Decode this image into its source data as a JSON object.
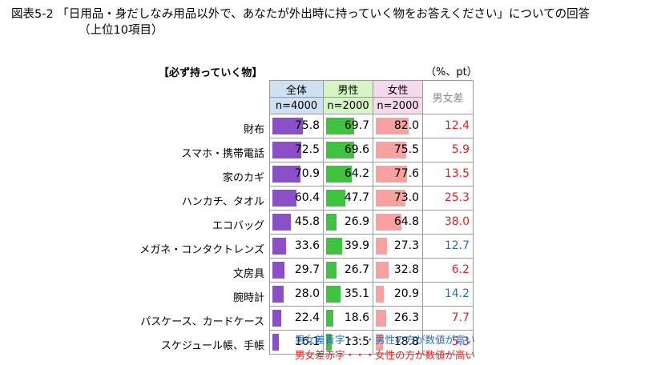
{
  "title": {
    "line1": "図表5-2 「日用品・身だしなみ用品以外で、あなたが外出時に持っていく物をお答えください」についての回答",
    "line2": "（上位10項目）"
  },
  "section_label": "【必ず持っていく物】",
  "unit_label": "（%、pt）",
  "headers": {
    "all": {
      "name": "全体",
      "n": "n=4000"
    },
    "male": {
      "name": "男性",
      "n": "n=2000"
    },
    "female": {
      "name": "女性",
      "n": "n=2000"
    },
    "diff": "男女差"
  },
  "colors": {
    "all_bar": "#8b4fc8",
    "male_bar": "#3fc23f",
    "female_bar": "#f7a1a1",
    "diff_red": "#e02020",
    "diff_blue": "#1f6fc0"
  },
  "chart_data": {
    "type": "table",
    "categories": [
      "財布",
      "スマホ・携帯電話",
      "家のカギ",
      "ハンカチ、タオル",
      "エコバッグ",
      "メガネ・コンタクトレンズ",
      "文房具",
      "腕時計",
      "パスケース、カードケース",
      "スケジュール帳、手帳"
    ],
    "series": [
      {
        "name": "全体",
        "values": [
          "75.8",
          "72.5",
          "70.9",
          "60.4",
          "45.8",
          "33.6",
          "29.7",
          "28.0",
          "22.4",
          "16.1"
        ]
      },
      {
        "name": "男性",
        "values": [
          "69.7",
          "69.6",
          "64.2",
          "47.7",
          "26.9",
          "39.9",
          "26.7",
          "35.1",
          "18.6",
          "13.5"
        ]
      },
      {
        "name": "女性",
        "values": [
          "82.0",
          "75.5",
          "77.6",
          "73.0",
          "64.8",
          "27.3",
          "32.8",
          "20.9",
          "26.3",
          "18.8"
        ]
      },
      {
        "name": "男女差",
        "values": [
          "12.4",
          "5.9",
          "13.5",
          "25.3",
          "38.0",
          "12.7",
          "6.2",
          "14.2",
          "7.7",
          "5.3"
        ]
      }
    ],
    "diff_color": [
      "red",
      "red",
      "red",
      "red",
      "red",
      "blue",
      "red",
      "blue",
      "red",
      "red"
    ]
  },
  "notes": {
    "blue": "男女差青字・・・男性の方が数値が高い",
    "red": "男女差赤字・・・女性の方が数値が高い"
  }
}
